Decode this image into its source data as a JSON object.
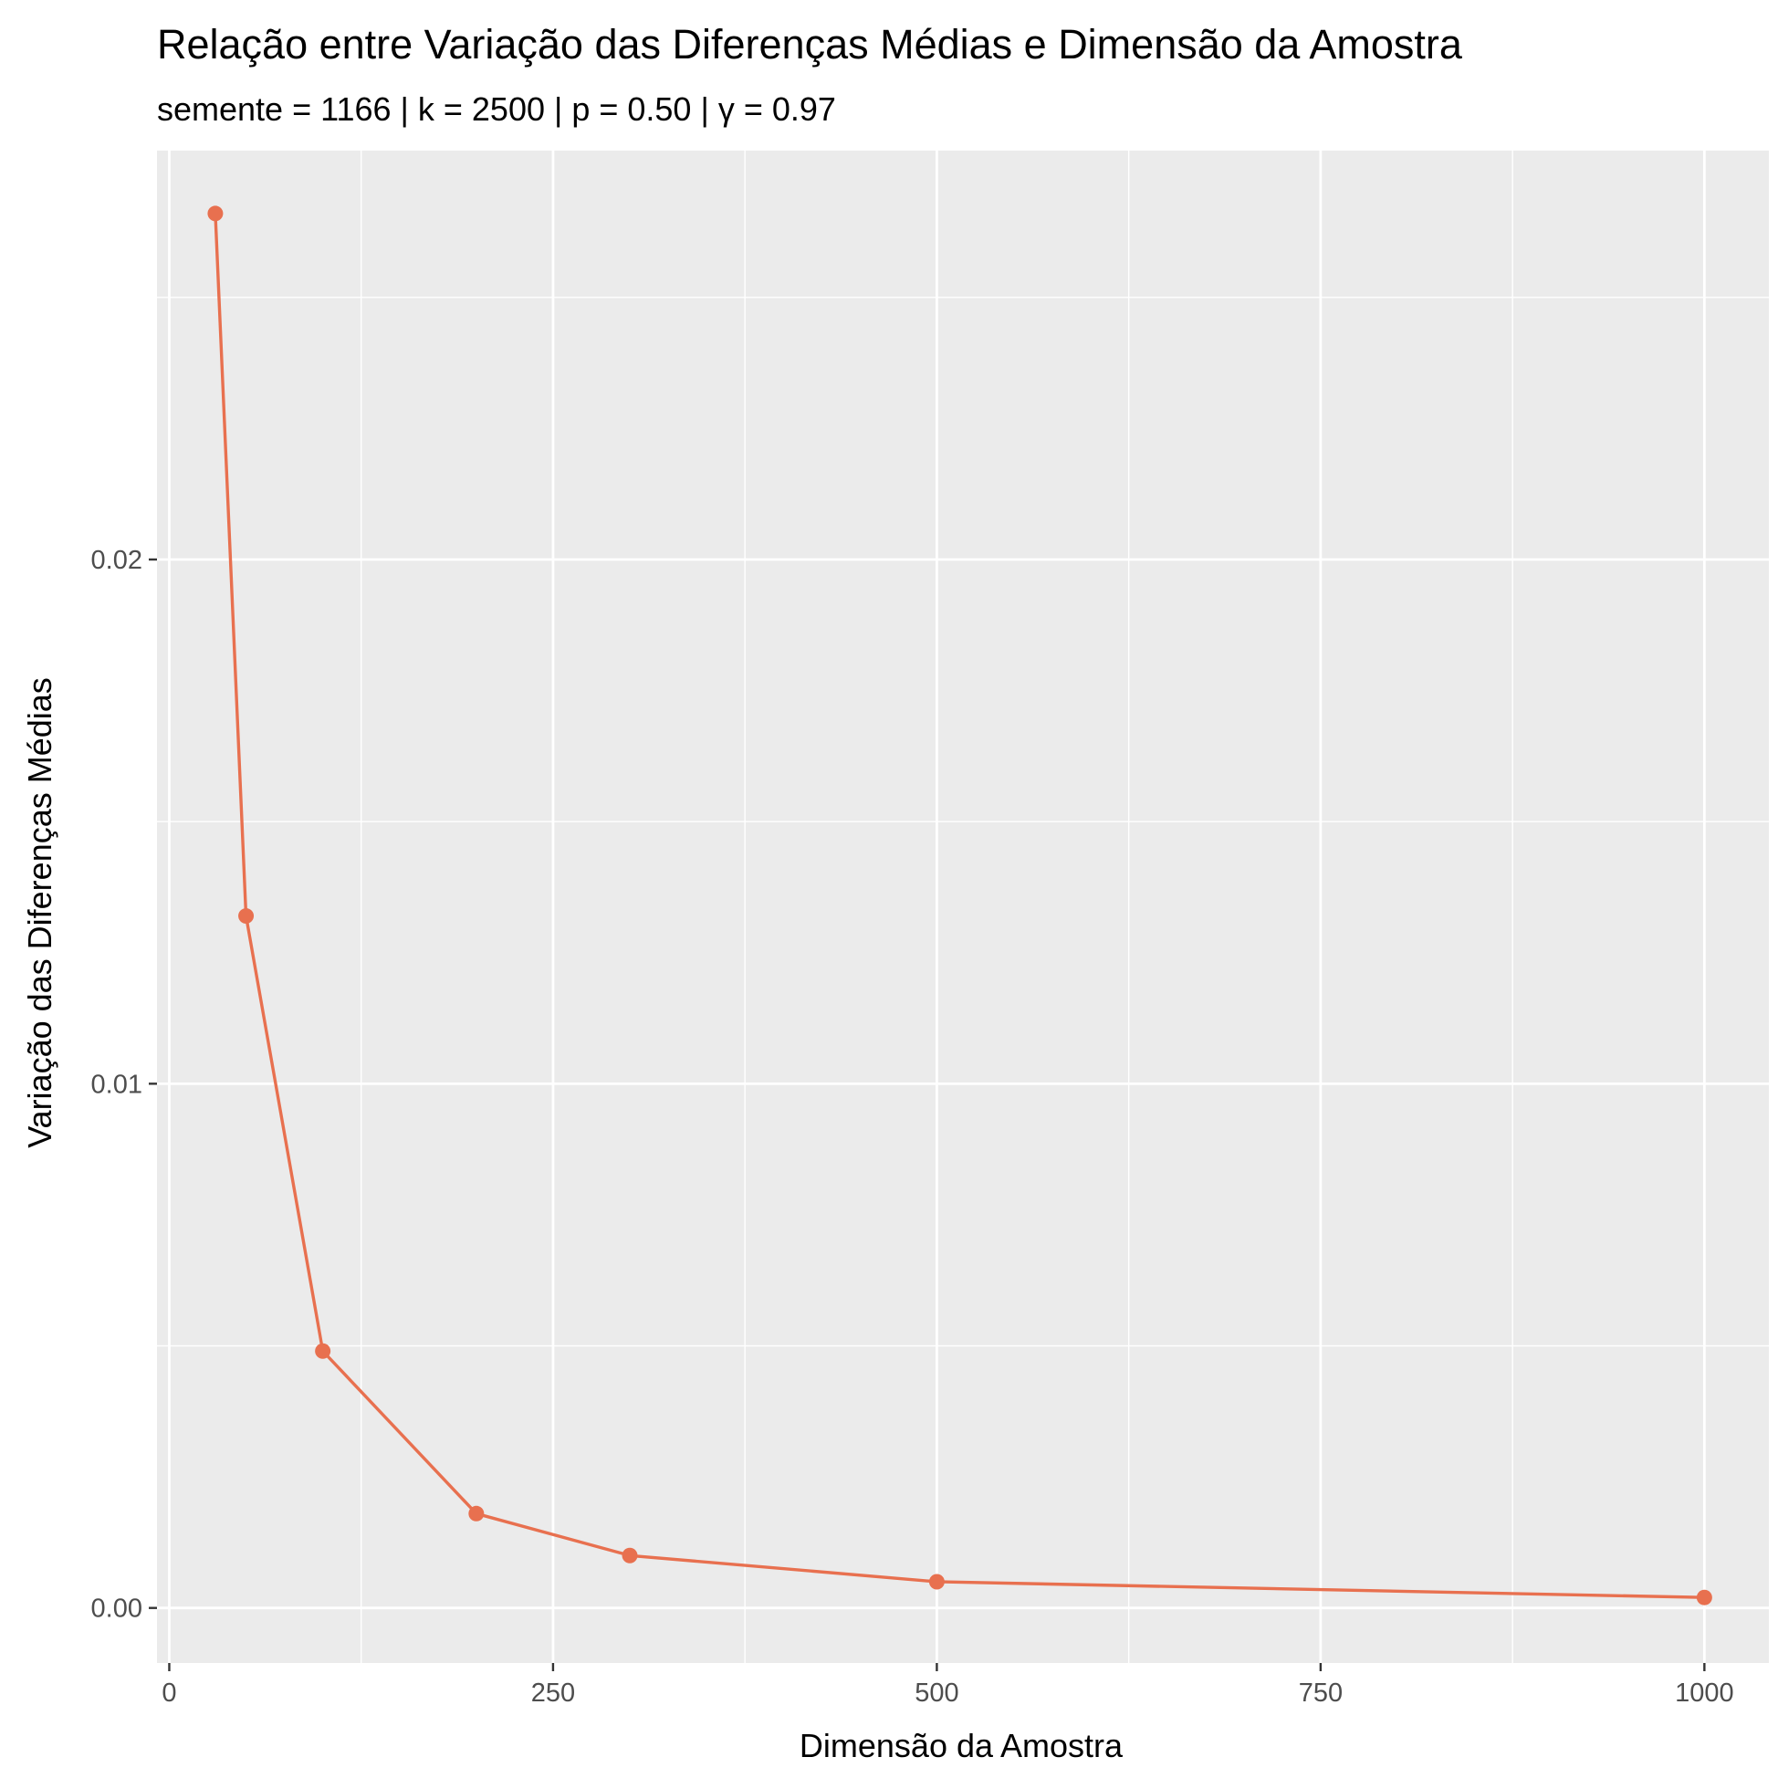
{
  "chart_data": {
    "type": "line",
    "title": "Relação entre Variação das Diferenças Médias e Dimensão da Amostra",
    "subtitle": "semente = 1166 | k = 2500 | p = 0.50 | γ = 0.97",
    "xlabel": "Dimensão da Amostra",
    "ylabel": "Variação das Diferenças Médias",
    "xlim": [
      -8,
      1042
    ],
    "ylim": [
      -0.00105,
      0.0278
    ],
    "x_ticks": [
      0,
      250,
      500,
      750,
      1000
    ],
    "x_tick_labels": [
      "0",
      "250",
      "500",
      "750",
      "1000"
    ],
    "y_ticks": [
      0.0,
      0.01,
      0.02
    ],
    "y_tick_labels": [
      "0.00",
      "0.01",
      "0.02"
    ],
    "grid": true,
    "x": [
      30,
      50,
      100,
      200,
      300,
      500,
      1000
    ],
    "series": [
      {
        "values": [
          0.0266,
          0.0132,
          0.0049,
          0.0018,
          0.001,
          0.0005,
          0.0002
        ]
      }
    ],
    "colors": {
      "line": "#E8704F",
      "panel": "#EBEBEB",
      "grid": "#FFFFFF",
      "tick_text": "#4D4D4D",
      "tick_mark": "#333333"
    }
  }
}
